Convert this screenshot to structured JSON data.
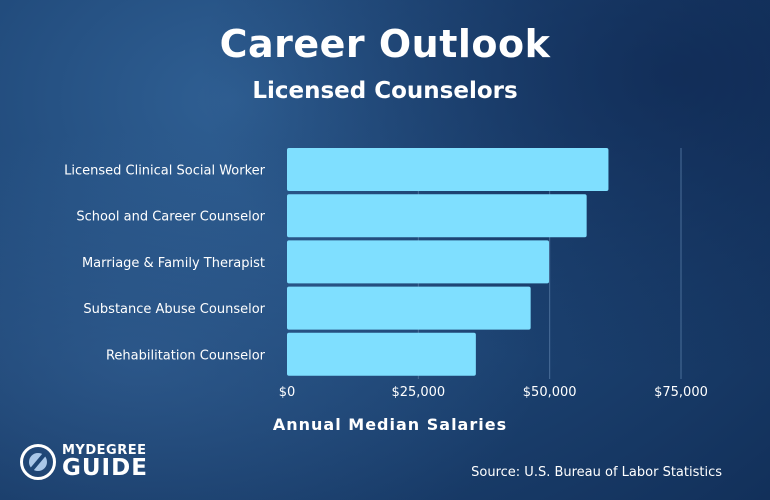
{
  "title": "Career Outlook",
  "subtitle": "Licensed Counselors",
  "source": "Source: U.S. Bureau of Labor Statistics",
  "logo": {
    "top": "MYDEGREE",
    "bottom": "GUIDE"
  },
  "colors": {
    "bar": "#7fdfff",
    "gridline": "#4a6e99",
    "text": "#ffffff"
  },
  "chart_data": {
    "type": "bar",
    "orientation": "horizontal",
    "categories": [
      "Licensed Clinical Social Worker",
      "School and Career Counselor",
      "Marriage & Family Therapist",
      "Substance Abuse Counselor",
      "Rehabilitation Counselor"
    ],
    "values": [
      61190,
      57040,
      49880,
      46380,
      35950
    ],
    "xlabel": "Annual Median Salaries",
    "xlim": [
      0,
      75000
    ],
    "xticks": [
      0,
      25000,
      50000,
      75000
    ],
    "xtick_labels": [
      "$0",
      "$25,000",
      "$50,000",
      "$75,000"
    ],
    "grid": true
  }
}
